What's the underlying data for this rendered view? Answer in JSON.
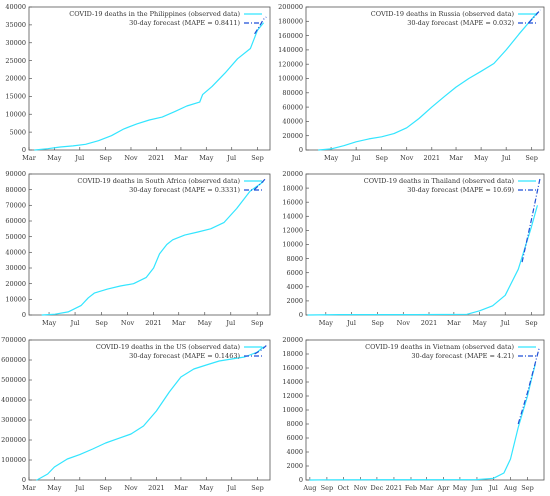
{
  "chart_data": [
    {
      "type": "line",
      "xlim": [
        "2020-03-01",
        "2021-10-01"
      ],
      "ylim": [
        0,
        40000
      ],
      "yticks": [
        0,
        5000,
        10000,
        15000,
        20000,
        25000,
        30000,
        35000,
        40000
      ],
      "xticks": [
        {
          "label": "Mar",
          "date": "2020-03-01"
        },
        {
          "label": "May",
          "date": "2020-05-01"
        },
        {
          "label": "Jul",
          "date": "2020-07-01"
        },
        {
          "label": "Sep",
          "date": "2020-09-01"
        },
        {
          "label": "Nov",
          "date": "2020-11-01"
        },
        {
          "label": "2021",
          "date": "2021-01-01"
        },
        {
          "label": "Mar",
          "date": "2021-03-01"
        },
        {
          "label": "May",
          "date": "2021-05-01"
        },
        {
          "label": "Jul",
          "date": "2021-07-01"
        },
        {
          "label": "Sep",
          "date": "2021-09-01"
        }
      ],
      "series": [
        {
          "name": "COVID-19 deaths in the Philippines (observed data)",
          "style": "solid",
          "color": "#33e5ff",
          "points": [
            [
              "2020-03-15",
              0
            ],
            [
              "2020-04-15",
              350
            ],
            [
              "2020-05-15",
              850
            ],
            [
              "2020-06-15",
              1150
            ],
            [
              "2020-07-15",
              1600
            ],
            [
              "2020-08-15",
              2600
            ],
            [
              "2020-09-15",
              4000
            ],
            [
              "2020-10-15",
              5900
            ],
            [
              "2020-11-15",
              7300
            ],
            [
              "2020-12-15",
              8400
            ],
            [
              "2021-01-15",
              9200
            ],
            [
              "2021-02-15",
              10800
            ],
            [
              "2021-03-15",
              12300
            ],
            [
              "2021-04-15",
              13400
            ],
            [
              "2021-04-22",
              15500
            ],
            [
              "2021-05-15",
              17800
            ],
            [
              "2021-06-15",
              21500
            ],
            [
              "2021-07-15",
              25500
            ],
            [
              "2021-08-15",
              28400
            ],
            [
              "2021-09-01",
              33500
            ],
            [
              "2021-09-15",
              35500
            ]
          ]
        },
        {
          "name": "30-day forecast (MAPE = 0.8411)",
          "style": "dashdot",
          "color": "#1f4fd6",
          "points": [
            [
              "2021-08-25",
              32500
            ],
            [
              "2021-09-05",
              34500
            ],
            [
              "2021-09-15",
              36500
            ],
            [
              "2021-09-22",
              37200
            ]
          ]
        }
      ]
    },
    {
      "type": "line",
      "xlim": [
        "2020-03-01",
        "2021-10-01"
      ],
      "ylim": [
        0,
        200000
      ],
      "yticks": [
        0,
        20000,
        40000,
        60000,
        80000,
        100000,
        120000,
        140000,
        160000,
        180000,
        200000
      ],
      "xticks": [
        {
          "label": "May",
          "date": "2020-05-01"
        },
        {
          "label": "Jul",
          "date": "2020-07-01"
        },
        {
          "label": "Sep",
          "date": "2020-09-01"
        },
        {
          "label": "Nov",
          "date": "2020-11-01"
        },
        {
          "label": "2021",
          "date": "2021-01-01"
        },
        {
          "label": "Mar",
          "date": "2021-03-01"
        },
        {
          "label": "May",
          "date": "2021-05-01"
        },
        {
          "label": "Jul",
          "date": "2021-07-01"
        },
        {
          "label": "Sep",
          "date": "2021-09-01"
        }
      ],
      "series": [
        {
          "name": "COVID-19 deaths in Russia (observed data)",
          "style": "solid",
          "color": "#33e5ff",
          "points": [
            [
              "2020-04-01",
              0
            ],
            [
              "2020-05-01",
              1500
            ],
            [
              "2020-06-01",
              6000
            ],
            [
              "2020-07-01",
              11500
            ],
            [
              "2020-08-01",
              15500
            ],
            [
              "2020-09-01",
              18500
            ],
            [
              "2020-10-01",
              23000
            ],
            [
              "2020-11-01",
              31000
            ],
            [
              "2020-12-01",
              44000
            ],
            [
              "2021-01-01",
              60000
            ],
            [
              "2021-02-01",
              75000
            ],
            [
              "2021-03-01",
              88000
            ],
            [
              "2021-04-01",
              100000
            ],
            [
              "2021-05-01",
              110000
            ],
            [
              "2021-06-01",
              121000
            ],
            [
              "2021-07-01",
              140000
            ],
            [
              "2021-08-01",
              162000
            ],
            [
              "2021-09-01",
              183000
            ],
            [
              "2021-09-15",
              192000
            ]
          ]
        },
        {
          "name": "30-day forecast (MAPE = 0.032)",
          "style": "dashdot",
          "color": "#1f4fd6",
          "points": [
            [
              "2021-08-25",
              178000
            ],
            [
              "2021-09-10",
              188000
            ],
            [
              "2021-09-22",
              196000
            ]
          ]
        }
      ]
    },
    {
      "type": "line",
      "xlim": [
        "2020-03-15",
        "2021-10-01"
      ],
      "ylim": [
        0,
        90000
      ],
      "yticks": [
        0,
        10000,
        20000,
        30000,
        40000,
        50000,
        60000,
        70000,
        80000,
        90000
      ],
      "xticks": [
        {
          "label": "May",
          "date": "2020-05-01"
        },
        {
          "label": "Jul",
          "date": "2020-07-01"
        },
        {
          "label": "Sep",
          "date": "2020-09-01"
        },
        {
          "label": "Nov",
          "date": "2020-11-01"
        },
        {
          "label": "2021",
          "date": "2021-01-01"
        },
        {
          "label": "Mar",
          "date": "2021-03-01"
        },
        {
          "label": "May",
          "date": "2021-05-01"
        },
        {
          "label": "Jul",
          "date": "2021-07-01"
        },
        {
          "label": "Sep",
          "date": "2021-09-01"
        }
      ],
      "series": [
        {
          "name": "COVID-19 deaths in South Africa (observed data)",
          "style": "solid",
          "color": "#33e5ff",
          "points": [
            [
              "2020-04-15",
              0
            ],
            [
              "2020-05-15",
              500
            ],
            [
              "2020-06-15",
              2000
            ],
            [
              "2020-07-15",
              6000
            ],
            [
              "2020-08-01",
              11000
            ],
            [
              "2020-08-15",
              14000
            ],
            [
              "2020-09-15",
              16500
            ],
            [
              "2020-10-15",
              18500
            ],
            [
              "2020-11-15",
              20000
            ],
            [
              "2020-12-15",
              24000
            ],
            [
              "2021-01-01",
              30000
            ],
            [
              "2021-01-15",
              39000
            ],
            [
              "2021-02-01",
              45000
            ],
            [
              "2021-02-15",
              48000
            ],
            [
              "2021-03-15",
              51000
            ],
            [
              "2021-04-15",
              53000
            ],
            [
              "2021-05-15",
              55000
            ],
            [
              "2021-06-15",
              59000
            ],
            [
              "2021-07-15",
              68000
            ],
            [
              "2021-08-15",
              79000
            ],
            [
              "2021-09-15",
              85000
            ]
          ]
        },
        {
          "name": "30-day forecast (MAPE = 0.3331)",
          "style": "dashdot",
          "color": "#1f4fd6",
          "points": [
            [
              "2021-08-25",
              80000
            ],
            [
              "2021-09-10",
              84000
            ],
            [
              "2021-09-22",
              87500
            ]
          ]
        }
      ]
    },
    {
      "type": "line",
      "xlim": [
        "2020-03-15",
        "2021-10-01"
      ],
      "ylim": [
        0,
        20000
      ],
      "yticks": [
        0,
        2000,
        4000,
        6000,
        8000,
        10000,
        12000,
        14000,
        16000,
        18000,
        20000
      ],
      "xticks": [
        {
          "label": "May",
          "date": "2020-05-01"
        },
        {
          "label": "Jul",
          "date": "2020-07-01"
        },
        {
          "label": "Sep",
          "date": "2020-09-01"
        },
        {
          "label": "Nov",
          "date": "2020-11-01"
        },
        {
          "label": "2021",
          "date": "2021-01-01"
        },
        {
          "label": "Mar",
          "date": "2021-03-01"
        },
        {
          "label": "May",
          "date": "2021-05-01"
        },
        {
          "label": "Jul",
          "date": "2021-07-01"
        },
        {
          "label": "Sep",
          "date": "2021-09-01"
        }
      ],
      "series": [
        {
          "name": "COVID-19 deaths in Thailand (observed data)",
          "style": "solid",
          "color": "#33e5ff",
          "points": [
            [
              "2020-03-20",
              0
            ],
            [
              "2020-06-01",
              58
            ],
            [
              "2020-12-01",
              60
            ],
            [
              "2021-04-01",
              95
            ],
            [
              "2021-05-01",
              600
            ],
            [
              "2021-06-01",
              1300
            ],
            [
              "2021-07-01",
              2800
            ],
            [
              "2021-08-01",
              6500
            ],
            [
              "2021-09-01",
              12500
            ],
            [
              "2021-09-15",
              15500
            ]
          ]
        },
        {
          "name": "30-day forecast (MAPE = 10.69)",
          "style": "dashdot",
          "color": "#1f4fd6",
          "points": [
            [
              "2021-08-10",
              7500
            ],
            [
              "2021-09-01",
              13500
            ],
            [
              "2021-09-22",
              19500
            ]
          ]
        }
      ]
    },
    {
      "type": "line",
      "xlim": [
        "2020-03-01",
        "2021-10-01"
      ],
      "ylim": [
        0,
        700000
      ],
      "yticks": [
        0,
        100000,
        200000,
        300000,
        400000,
        500000,
        600000,
        700000
      ],
      "xticks": [
        {
          "label": "Mar",
          "date": "2020-03-01"
        },
        {
          "label": "May",
          "date": "2020-05-01"
        },
        {
          "label": "Jul",
          "date": "2020-07-01"
        },
        {
          "label": "Sep",
          "date": "2020-09-01"
        },
        {
          "label": "Nov",
          "date": "2020-11-01"
        },
        {
          "label": "2021",
          "date": "2021-01-01"
        },
        {
          "label": "Mar",
          "date": "2021-03-01"
        },
        {
          "label": "May",
          "date": "2021-05-01"
        },
        {
          "label": "Jul",
          "date": "2021-07-01"
        },
        {
          "label": "Sep",
          "date": "2021-09-01"
        }
      ],
      "series": [
        {
          "name": "COVID-19 deaths in the US (observed data)",
          "style": "solid",
          "color": "#33e5ff",
          "points": [
            [
              "2020-03-20",
              0
            ],
            [
              "2020-04-15",
              30000
            ],
            [
              "2020-05-01",
              65000
            ],
            [
              "2020-06-01",
              105000
            ],
            [
              "2020-07-01",
              127000
            ],
            [
              "2020-08-01",
              155000
            ],
            [
              "2020-09-01",
              185000
            ],
            [
              "2020-10-01",
              207000
            ],
            [
              "2020-11-01",
              230000
            ],
            [
              "2020-12-01",
              270000
            ],
            [
              "2021-01-01",
              345000
            ],
            [
              "2021-02-01",
              440000
            ],
            [
              "2021-03-01",
              515000
            ],
            [
              "2021-04-01",
              555000
            ],
            [
              "2021-05-01",
              575000
            ],
            [
              "2021-06-01",
              595000
            ],
            [
              "2021-07-01",
              605000
            ],
            [
              "2021-08-01",
              615000
            ],
            [
              "2021-09-01",
              640000
            ],
            [
              "2021-09-15",
              665000
            ]
          ]
        },
        {
          "name": "30-day forecast (MAPE = 0.1463)",
          "style": "dashdot",
          "color": "#1f4fd6",
          "points": [
            [
              "2021-08-25",
              630000
            ],
            [
              "2021-09-10",
              650000
            ],
            [
              "2021-09-22",
              672000
            ]
          ]
        }
      ]
    },
    {
      "type": "line",
      "xlim": [
        "2020-07-25",
        "2021-10-01"
      ],
      "ylim": [
        0,
        20000
      ],
      "yticks": [
        0,
        2000,
        4000,
        6000,
        8000,
        10000,
        12000,
        14000,
        16000,
        18000,
        20000
      ],
      "xticks": [
        {
          "label": "Aug",
          "date": "2020-08-01"
        },
        {
          "label": "Sep",
          "date": "2020-09-01"
        },
        {
          "label": "Oct",
          "date": "2020-10-01"
        },
        {
          "label": "Nov",
          "date": "2020-11-01"
        },
        {
          "label": "Dec",
          "date": "2020-12-01"
        },
        {
          "label": "2021",
          "date": "2021-01-01"
        },
        {
          "label": "Feb",
          "date": "2021-02-01"
        },
        {
          "label": "Mar",
          "date": "2021-03-01"
        },
        {
          "label": "Apr",
          "date": "2021-04-01"
        },
        {
          "label": "May",
          "date": "2021-05-01"
        },
        {
          "label": "Jun",
          "date": "2021-06-01"
        },
        {
          "label": "Jul",
          "date": "2021-07-01"
        },
        {
          "label": "Aug",
          "date": "2021-08-01"
        },
        {
          "label": "Sep",
          "date": "2021-09-01"
        }
      ],
      "series": [
        {
          "name": "COVID-19 deaths in Vietnam (observed data)",
          "style": "solid",
          "color": "#33e5ff",
          "points": [
            [
              "2020-08-01",
              5
            ],
            [
              "2020-09-01",
              35
            ],
            [
              "2021-06-01",
              50
            ],
            [
              "2021-07-01",
              250
            ],
            [
              "2021-07-20",
              1000
            ],
            [
              "2021-08-01",
              3000
            ],
            [
              "2021-08-15",
              7500
            ],
            [
              "2021-09-01",
              12000
            ],
            [
              "2021-09-10",
              15000
            ],
            [
              "2021-09-15",
              16500
            ]
          ]
        },
        {
          "name": "30-day forecast (MAPE = 4.21)",
          "style": "dashdot",
          "color": "#1f4fd6",
          "points": [
            [
              "2021-08-15",
              8000
            ],
            [
              "2021-09-01",
              12500
            ],
            [
              "2021-09-22",
              18800
            ]
          ]
        }
      ]
    }
  ]
}
